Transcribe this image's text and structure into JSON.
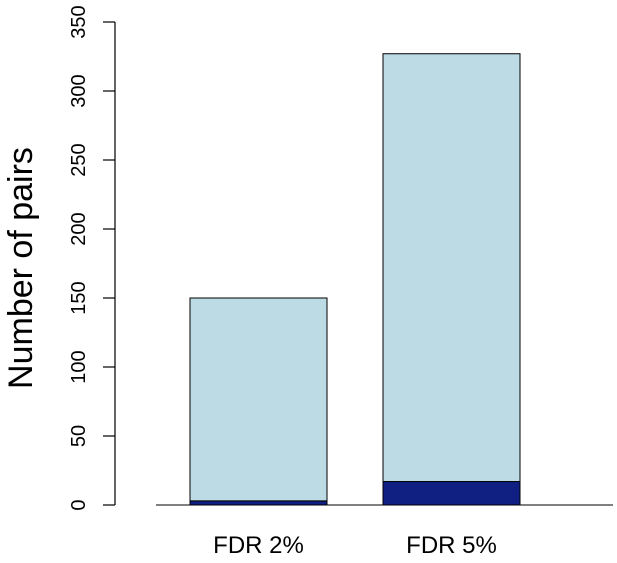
{
  "chart_data": {
    "type": "bar",
    "stacked": true,
    "categories": [
      "FDR 2%",
      "FDR 5%"
    ],
    "series": [
      {
        "values": [
          3,
          17
        ],
        "color": "#0f1f82"
      },
      {
        "values": [
          147,
          310
        ],
        "color": "#bcdbe5"
      }
    ],
    "totals": [
      150,
      327
    ],
    "xlabel": "",
    "ylabel": "Number of pairs",
    "ylim": [
      0,
      350
    ],
    "yticks": [
      0,
      50,
      100,
      150,
      200,
      250,
      300,
      350
    ],
    "grid": false,
    "legend": "none"
  }
}
